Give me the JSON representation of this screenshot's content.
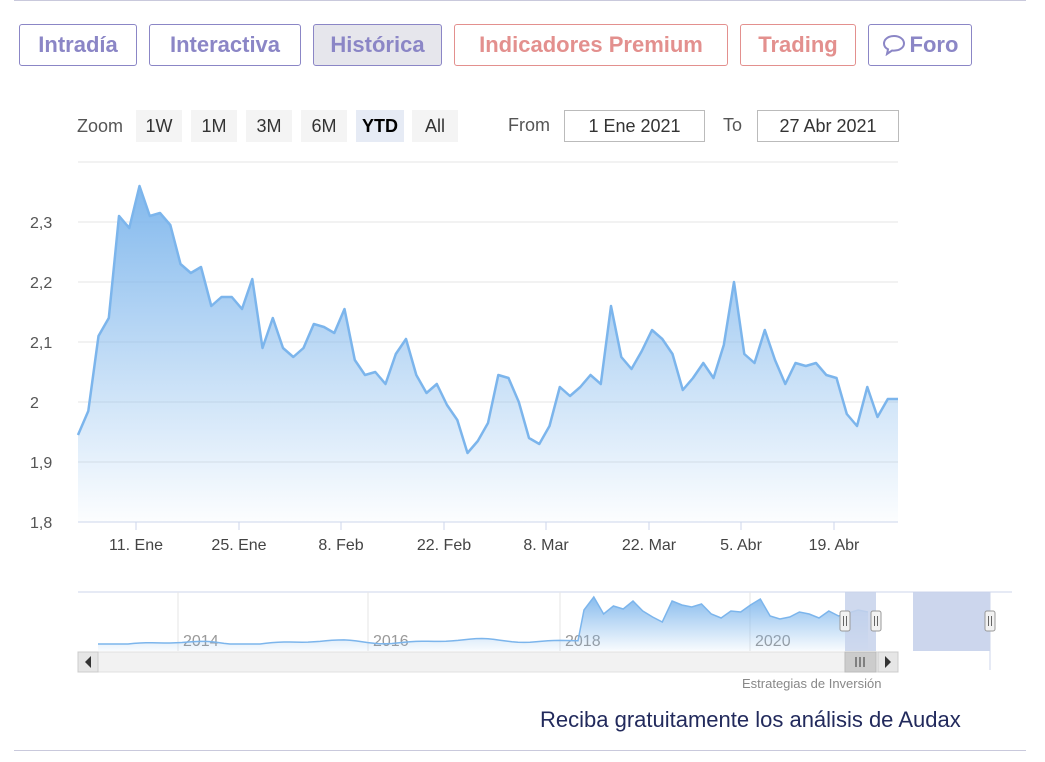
{
  "tabs": [
    {
      "label": "Intradía",
      "tone": "purple",
      "active": false
    },
    {
      "label": "Interactiva",
      "tone": "purple",
      "active": false
    },
    {
      "label": "Histórica",
      "tone": "purple",
      "active": true
    },
    {
      "label": "Indicadores Premium",
      "tone": "red",
      "active": false
    },
    {
      "label": "Trading",
      "tone": "red",
      "active": false
    },
    {
      "label": "Foro",
      "tone": "purple",
      "active": false,
      "icon": "chat-bubble-icon"
    }
  ],
  "range_selector": {
    "zoom_label": "Zoom",
    "buttons": [
      "1W",
      "1M",
      "3M",
      "6M",
      "YTD",
      "All"
    ],
    "selected": "YTD",
    "from_label": "From",
    "from_value": "1 Ene 2021",
    "to_label": "To",
    "to_value": "27 Abr 2021"
  },
  "colors": {
    "tab_purple": "#8b86c6",
    "tab_red": "#e3908e",
    "series_line": "#7cb5ec",
    "navigator_mask": "#c7d2eb"
  },
  "chart_data": {
    "type": "area",
    "x_ticks": [
      "11. Ene",
      "25. Ene",
      "8. Feb",
      "22. Feb",
      "8. Mar",
      "22. Mar",
      "5. Abr",
      "19. Abr"
    ],
    "y_ticks": [
      "1,8",
      "1,9",
      "2",
      "2,1",
      "2,2",
      "2,3"
    ],
    "ylim": [
      1.8,
      2.4
    ],
    "grid": true,
    "legend": "none",
    "series": [
      {
        "values": [
          1.945,
          1.985,
          2.11,
          2.14,
          2.31,
          2.29,
          2.36,
          2.31,
          2.315,
          2.295,
          2.23,
          2.215,
          2.225,
          2.16,
          2.175,
          2.175,
          2.155,
          2.205,
          2.09,
          2.14,
          2.09,
          2.075,
          2.09,
          2.13,
          2.125,
          2.115,
          2.155,
          2.07,
          2.045,
          2.05,
          2.03,
          2.08,
          2.105,
          2.045,
          2.015,
          2.03,
          1.995,
          1.97,
          1.915,
          1.935,
          1.965,
          2.045,
          2.04,
          2.0,
          1.94,
          1.93,
          1.96,
          2.025,
          2.01,
          2.025,
          2.045,
          2.03,
          2.16,
          2.075,
          2.055,
          2.085,
          2.12,
          2.105,
          2.08,
          2.02,
          2.04,
          2.065,
          2.04,
          2.095,
          2.2,
          2.08,
          2.065,
          2.12,
          2.07,
          2.03,
          2.065,
          2.06,
          2.065,
          2.045,
          2.04,
          1.98,
          1.96,
          2.025,
          1.975,
          2.005,
          2.005
        ]
      }
    ],
    "navigator": {
      "x_ticks": [
        "2014",
        "2016",
        "2018",
        "2020"
      ]
    }
  },
  "footer": {
    "credit": "Estrategias de Inversión",
    "cta": "Reciba gratuitamente los análisis de Audax"
  }
}
